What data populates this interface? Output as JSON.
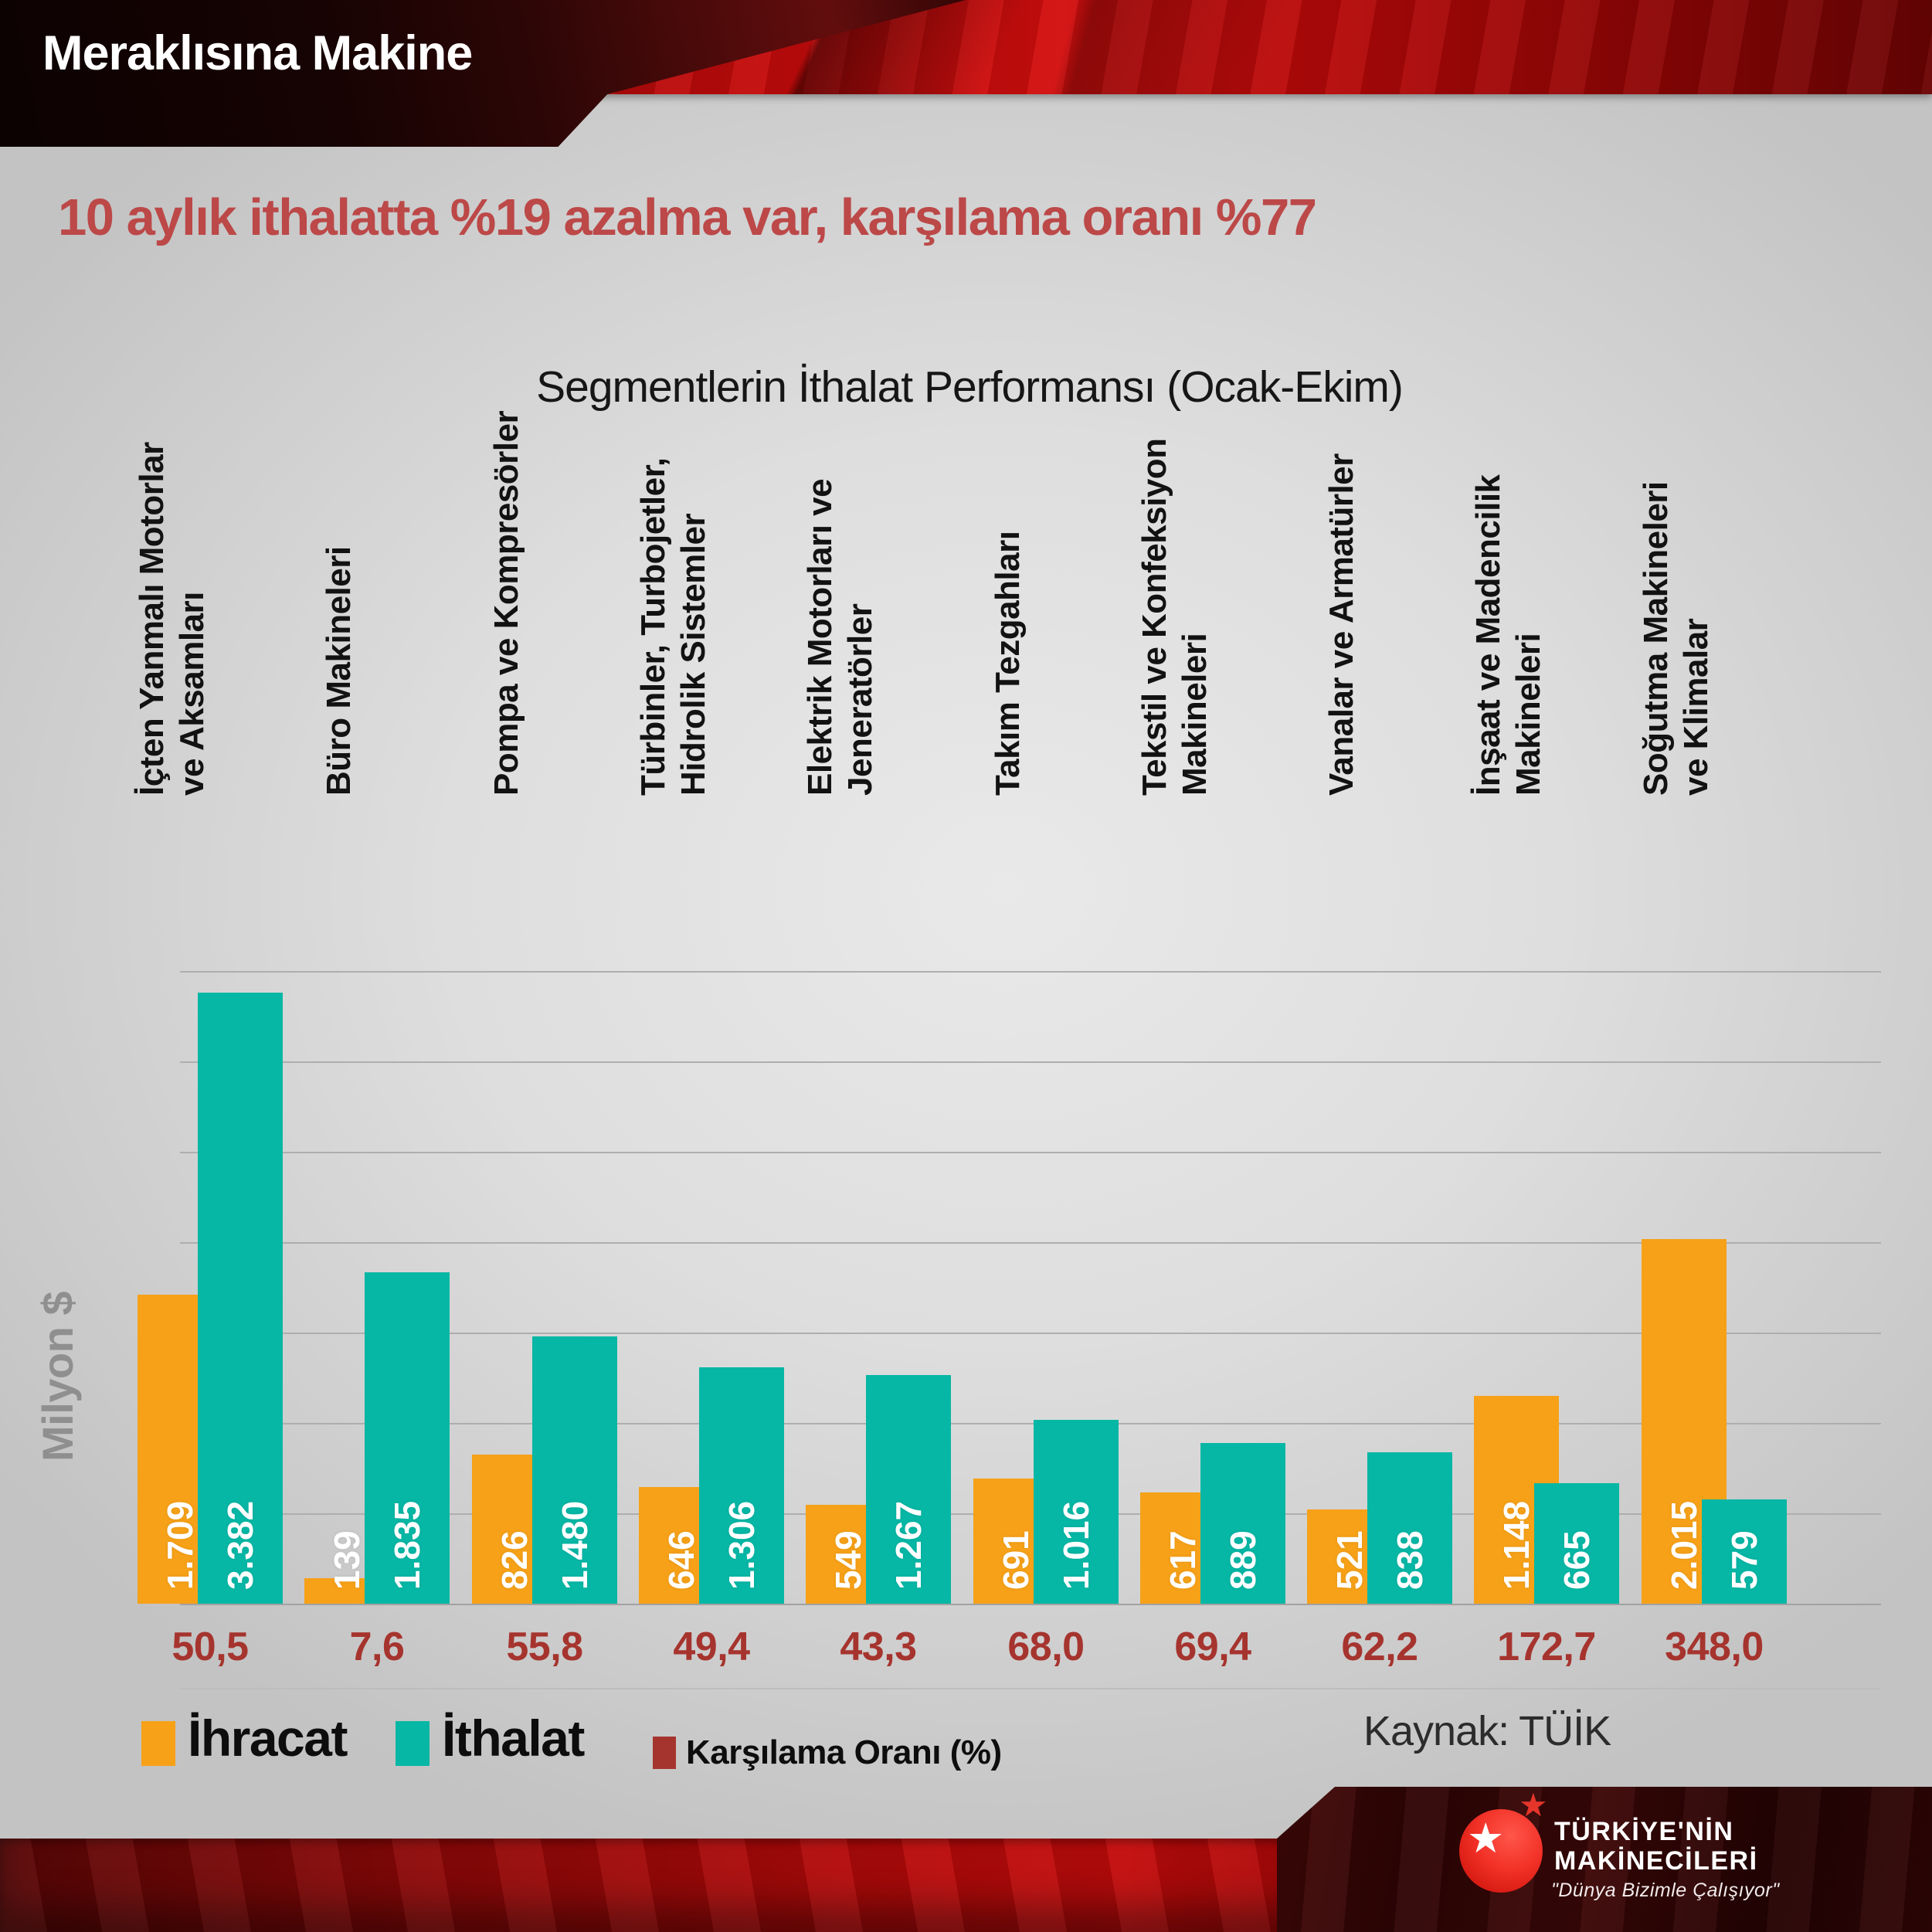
{
  "header": {
    "brand": "Meraklısına Makine"
  },
  "headline": "10 aylık ithalatta %19 azalma var, karşılama oranı %77",
  "chart": {
    "title": "Segmentlerin İthalat Performansı (Ocak-Ekim)",
    "y_axis_label": "Milyon $",
    "source_label": "Kaynak: TÜİK",
    "legend": [
      {
        "label": "İhracat",
        "color": "#F6A118"
      },
      {
        "label": "İthalat",
        "color": "#07B7A5"
      },
      {
        "label": "Karşılama Oranı (%)",
        "color": "#A6342E"
      }
    ]
  },
  "chart_data": {
    "type": "bar",
    "title": "Segmentlerin İthalat Performansı (Ocak-Ekim)",
    "unit": "Milyon $",
    "ylim": [
      0,
      3500
    ],
    "grid": true,
    "grid_step": 500,
    "legend_position": "bottom",
    "categories": [
      [
        "İçten Yanmalı Motorlar",
        "ve Aksamları"
      ],
      [
        "Büro Makineleri"
      ],
      [
        "Pompa ve Kompresörler"
      ],
      [
        "Türbinler, Turbojetler,",
        "Hidrolik Sistemler"
      ],
      [
        "Elektrik Motorları ve",
        "Jeneratörler"
      ],
      [
        "Takım Tezgahları"
      ],
      [
        "Tekstil ve Konfeksiyon",
        "Makineleri"
      ],
      [
        "Vanalar ve Armatürler"
      ],
      [
        "İnşaat ve Madencilik",
        "Makineleri"
      ],
      [
        "Soğutma Makineleri",
        "ve Klimalar"
      ]
    ],
    "series": [
      {
        "name": "İhracat",
        "color": "#F6A118",
        "values": [
          1709,
          139,
          826,
          646,
          549,
          691,
          617,
          521,
          1148,
          2015
        ],
        "labels": [
          "1.709",
          "139",
          "826",
          "646",
          "549",
          "691",
          "617",
          "521",
          "1.148",
          "2.015"
        ]
      },
      {
        "name": "İthalat",
        "color": "#07B7A5",
        "values": [
          3382,
          1835,
          1480,
          1306,
          1267,
          1016,
          889,
          838,
          665,
          579
        ],
        "labels": [
          "3.382",
          "1.835",
          "1.480",
          "1.306",
          "1.267",
          "1.016",
          "889",
          "838",
          "665",
          "579"
        ]
      }
    ],
    "ratio_series": {
      "name": "Karşılama Oranı (%)",
      "color": "#A6342E",
      "labels": [
        "50,5",
        "7,6",
        "55,8",
        "49,4",
        "43,3",
        "68,0",
        "69,4",
        "62,2",
        "172,7",
        "348,0"
      ]
    }
  },
  "footer": {
    "logo_title_line1": "TÜRKİYE'NİN",
    "logo_title_line2": "MAKİNECİLERİ",
    "logo_slogan": "\"Dünya Bizimle Çalışıyor\""
  }
}
